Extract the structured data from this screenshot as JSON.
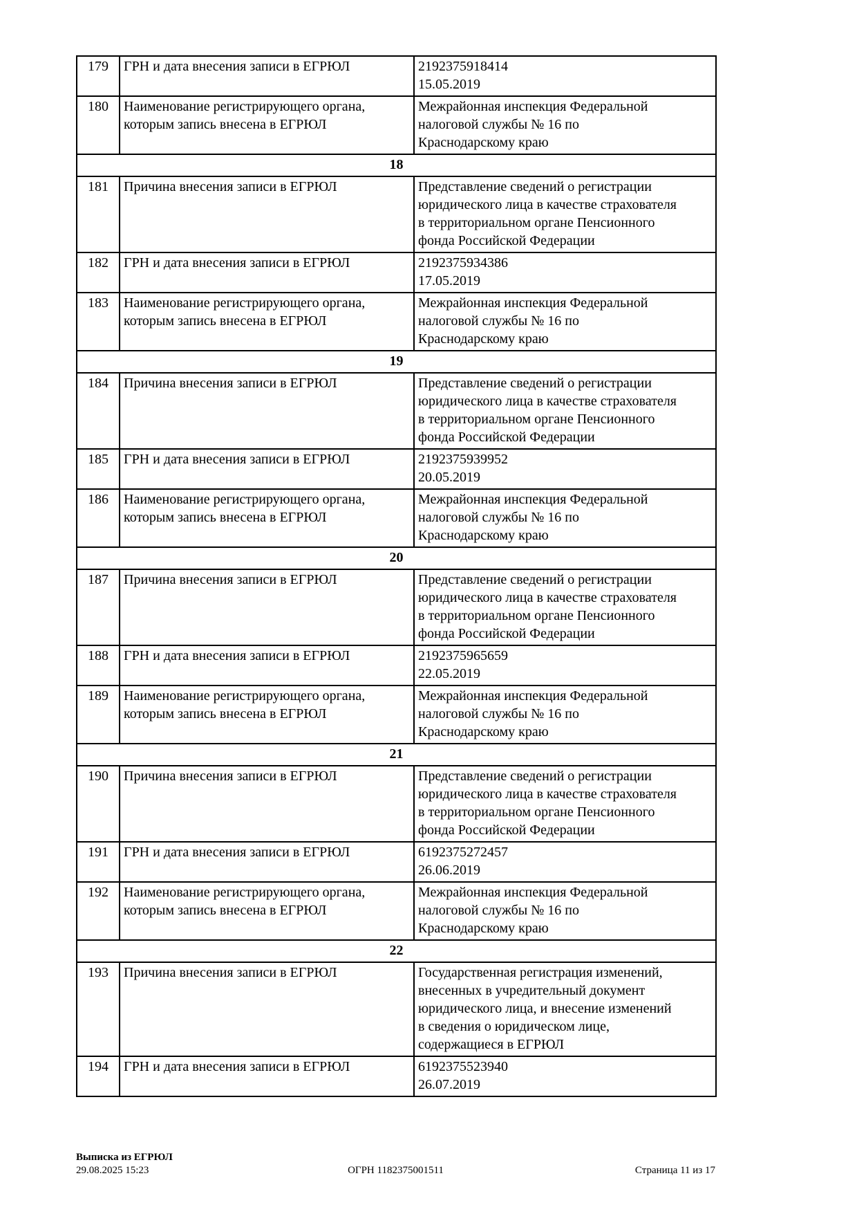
{
  "table": {
    "rows": [
      {
        "type": "field",
        "num": "179",
        "label": "ГРН и дата внесения записи в ЕГРЮЛ",
        "value": "2192375918414\n15.05.2019"
      },
      {
        "type": "field",
        "num": "180",
        "label": "Наименование регистрирующего органа,\nкоторым запись внесена в ЕГРЮЛ",
        "value": "Межрайонная инспекция Федеральной\nналоговой службы № 16 по\nКраснодарскому краю"
      },
      {
        "type": "section",
        "value": "18"
      },
      {
        "type": "field",
        "num": "181",
        "label": "Причина внесения записи в ЕГРЮЛ",
        "value": "Представление сведений о регистрации\nюридического лица в качестве страхователя\nв территориальном органе Пенсионного\nфонда Российской Федерации"
      },
      {
        "type": "field",
        "num": "182",
        "label": "ГРН и дата внесения записи в ЕГРЮЛ",
        "value": "2192375934386\n17.05.2019"
      },
      {
        "type": "field",
        "num": "183",
        "label": "Наименование регистрирующего органа,\nкоторым запись внесена в ЕГРЮЛ",
        "value": "Межрайонная инспекция Федеральной\nналоговой службы № 16 по\nКраснодарскому краю"
      },
      {
        "type": "section",
        "value": "19"
      },
      {
        "type": "field",
        "num": "184",
        "label": "Причина внесения записи в ЕГРЮЛ",
        "value": "Представление сведений о регистрации\nюридического лица в качестве страхователя\nв территориальном органе Пенсионного\nфонда Российской Федерации"
      },
      {
        "type": "field",
        "num": "185",
        "label": "ГРН и дата внесения записи в ЕГРЮЛ",
        "value": "2192375939952\n20.05.2019"
      },
      {
        "type": "field",
        "num": "186",
        "label": "Наименование регистрирующего органа,\nкоторым запись внесена в ЕГРЮЛ",
        "value": "Межрайонная инспекция Федеральной\nналоговой службы № 16 по\nКраснодарскому краю"
      },
      {
        "type": "section",
        "value": "20"
      },
      {
        "type": "field",
        "num": "187",
        "label": "Причина внесения записи в ЕГРЮЛ",
        "value": "Представление сведений о регистрации\nюридического лица в качестве страхователя\nв территориальном органе Пенсионного\nфонда Российской Федерации"
      },
      {
        "type": "field",
        "num": "188",
        "label": "ГРН и дата внесения записи в ЕГРЮЛ",
        "value": "2192375965659\n22.05.2019"
      },
      {
        "type": "field",
        "num": "189",
        "label": "Наименование регистрирующего органа,\nкоторым запись внесена в ЕГРЮЛ",
        "value": "Межрайонная инспекция Федеральной\nналоговой службы № 16 по\nКраснодарскому краю"
      },
      {
        "type": "section",
        "value": "21"
      },
      {
        "type": "field",
        "num": "190",
        "label": "Причина внесения записи в ЕГРЮЛ",
        "value": "Представление сведений о регистрации\nюридического лица в качестве страхователя\nв территориальном органе Пенсионного\nфонда Российской Федерации"
      },
      {
        "type": "field",
        "num": "191",
        "label": "ГРН и дата внесения записи в ЕГРЮЛ",
        "value": "6192375272457\n26.06.2019"
      },
      {
        "type": "field",
        "num": "192",
        "label": "Наименование регистрирующего органа,\nкоторым запись внесена в ЕГРЮЛ",
        "value": "Межрайонная инспекция Федеральной\nналоговой службы № 16 по\nКраснодарскому краю"
      },
      {
        "type": "section",
        "value": "22"
      },
      {
        "type": "field",
        "num": "193",
        "label": "Причина внесения записи в ЕГРЮЛ",
        "value": "Государственная регистрация изменений,\nвнесенных в учредительный документ\nюридического лица, и внесение изменений\nв сведения о юридическом лице,\nсодержащиеся в ЕГРЮЛ"
      },
      {
        "type": "field",
        "num": "194",
        "label": "ГРН и дата внесения записи в ЕГРЮЛ",
        "value": "6192375523940\n26.07.2019"
      }
    ]
  },
  "footer": {
    "doc_title": "Выписка из ЕГРЮЛ",
    "datetime": "29.08.2025 15:23",
    "ogrn": "ОГРН 1182375001511",
    "page": "Страница 11 из 17"
  }
}
